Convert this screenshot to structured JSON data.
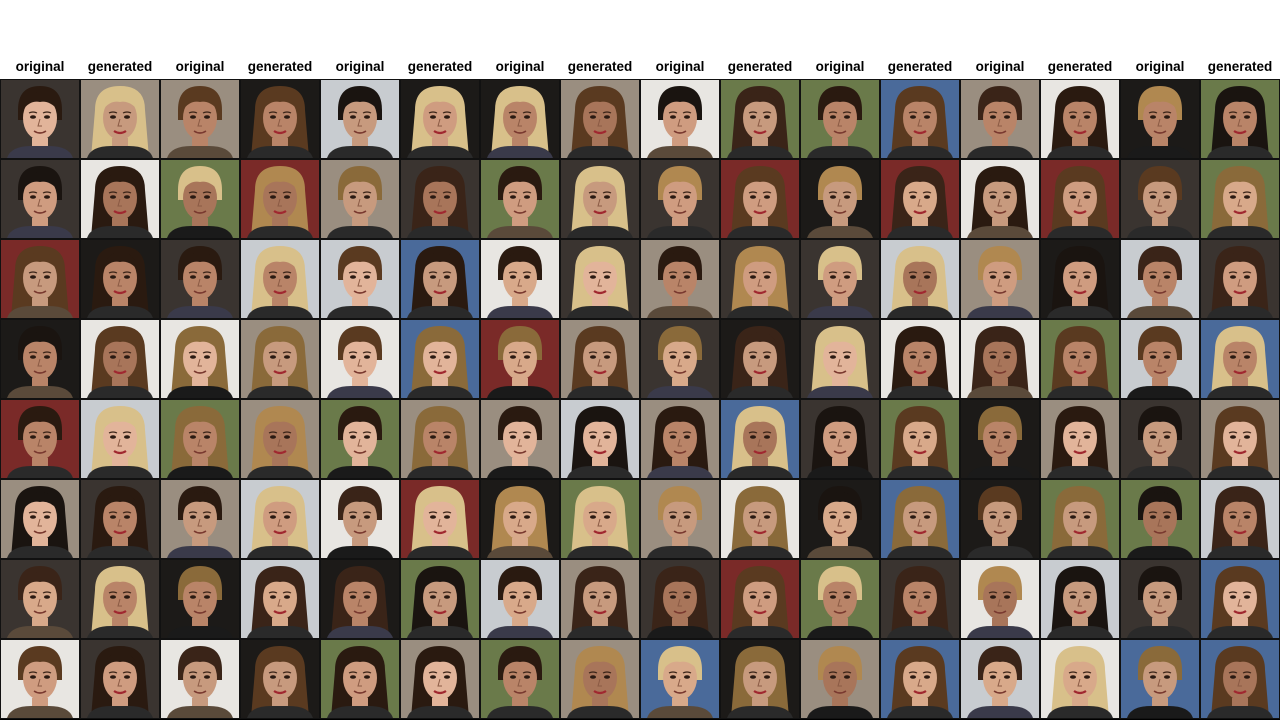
{
  "column_labels": [
    "original",
    "generated",
    "original",
    "generated",
    "original",
    "generated",
    "original",
    "generated",
    "original",
    "generated",
    "original",
    "generated",
    "original",
    "generated",
    "original",
    "generated"
  ],
  "grid": {
    "rows": 8,
    "columns": 16
  },
  "palette": {
    "skin": [
      "#c79a7e",
      "#d8a98a",
      "#b98468",
      "#e2b49a",
      "#a8755a",
      "#cf9c80"
    ],
    "hair": [
      "#2a1a10",
      "#5a3a20",
      "#8a6a3a",
      "#1a1410",
      "#b08850",
      "#3a2418",
      "#d8c08a"
    ],
    "background": [
      "#1c1a18",
      "#e8e6e2",
      "#6a7a4a",
      "#3a3430",
      "#9a8e80",
      "#c8ccd0",
      "#7a2a28",
      "#4a6a9a"
    ]
  }
}
